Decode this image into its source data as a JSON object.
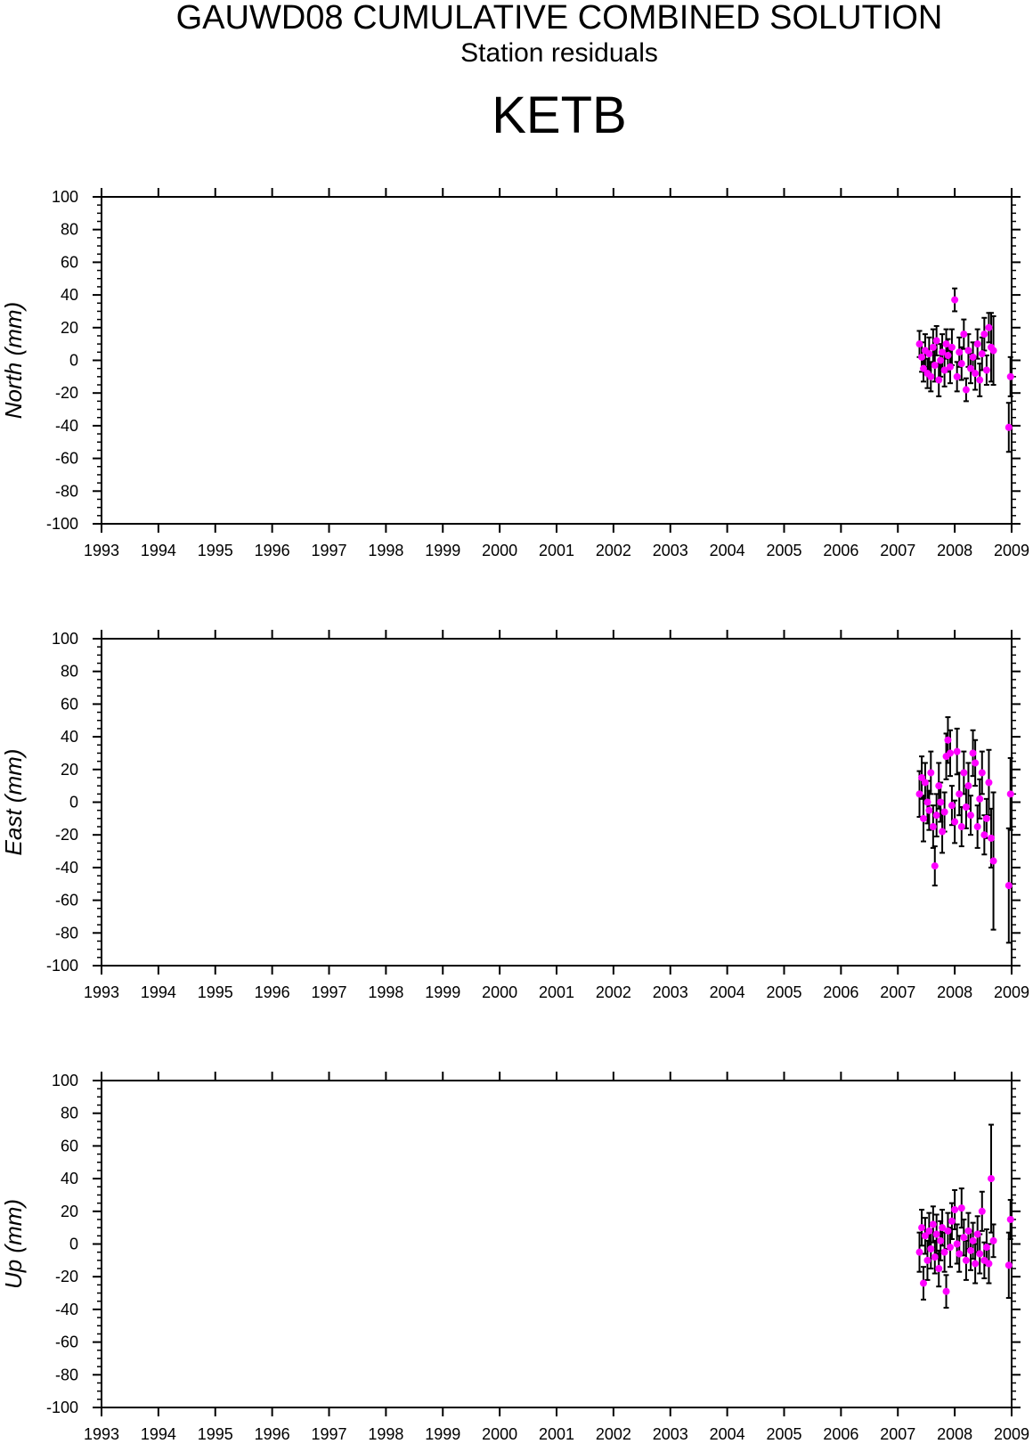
{
  "header": {
    "title": "GAUWD08 CUMULATIVE COMBINED SOLUTION",
    "subtitle": "Station residuals",
    "station": "KETB"
  },
  "colors": {
    "point": "#ff00ff",
    "errorbar": "#000000",
    "axis": "#000000"
  },
  "chart_data": [
    {
      "type": "scatter",
      "title": "",
      "xlabel": "",
      "ylabel": "North (mm)",
      "xlim": [
        1993,
        2009
      ],
      "ylim": [
        -100,
        100
      ],
      "xticks": [
        "1993",
        "1994",
        "1995",
        "1996",
        "1997",
        "1998",
        "1999",
        "2000",
        "2001",
        "2002",
        "2003",
        "2004",
        "2005",
        "2006",
        "2007",
        "2008",
        "2009"
      ],
      "yticks": [
        "100",
        "80",
        "60",
        "40",
        "20",
        "0",
        "-20",
        "-40",
        "-60",
        "-80",
        "-100"
      ],
      "grid": false,
      "series": [
        {
          "x": [
            2007.38,
            2007.42,
            2007.45,
            2007.48,
            2007.52,
            2007.55,
            2007.58,
            2007.62,
            2007.65,
            2007.68,
            2007.72,
            2007.75,
            2007.78,
            2007.82,
            2007.85,
            2007.88,
            2007.92,
            2007.95,
            2008.0,
            2008.04,
            2008.08,
            2008.12,
            2008.16,
            2008.2,
            2008.24,
            2008.28,
            2008.32,
            2008.36,
            2008.4,
            2008.44,
            2008.48,
            2008.52,
            2008.56,
            2008.6,
            2008.64,
            2008.68,
            2008.95,
            2008.98
          ],
          "y": [
            10,
            2,
            -5,
            6,
            -8,
            4,
            -10,
            8,
            -3,
            12,
            -12,
            0,
            5,
            -6,
            10,
            3,
            -4,
            8,
            37,
            -10,
            5,
            -2,
            16,
            -18,
            6,
            -5,
            2,
            -8,
            10,
            -12,
            4,
            16,
            -6,
            20,
            8,
            6,
            -41,
            -10
          ],
          "err": [
            8,
            9,
            8,
            10,
            9,
            10,
            9,
            11,
            10,
            9,
            10,
            10,
            11,
            10,
            9,
            10,
            10,
            11,
            7,
            9,
            9,
            10,
            9,
            7,
            10,
            9,
            9,
            10,
            9,
            10,
            10,
            10,
            9,
            9,
            21,
            21,
            15,
            12
          ]
        }
      ]
    },
    {
      "type": "scatter",
      "title": "",
      "xlabel": "",
      "ylabel": "East (mm)",
      "xlim": [
        1993,
        2009
      ],
      "ylim": [
        -100,
        100
      ],
      "xticks": [
        "1993",
        "1994",
        "1995",
        "1996",
        "1997",
        "1998",
        "1999",
        "2000",
        "2001",
        "2002",
        "2003",
        "2004",
        "2005",
        "2006",
        "2007",
        "2008",
        "2009"
      ],
      "yticks": [
        "100",
        "80",
        "60",
        "40",
        "20",
        "0",
        "-20",
        "-40",
        "-60",
        "-80",
        "-100"
      ],
      "grid": false,
      "series": [
        {
          "x": [
            2007.38,
            2007.42,
            2007.45,
            2007.48,
            2007.52,
            2007.55,
            2007.58,
            2007.62,
            2007.65,
            2007.68,
            2007.72,
            2007.75,
            2007.78,
            2007.82,
            2007.85,
            2007.88,
            2007.92,
            2007.95,
            2008.0,
            2008.04,
            2008.08,
            2008.12,
            2008.16,
            2008.2,
            2008.24,
            2008.28,
            2008.32,
            2008.36,
            2008.4,
            2008.44,
            2008.48,
            2008.52,
            2008.56,
            2008.6,
            2008.64,
            2008.68,
            2008.95,
            2008.98
          ],
          "y": [
            5,
            15,
            -10,
            12,
            0,
            -5,
            18,
            -15,
            -39,
            -8,
            10,
            0,
            -18,
            -6,
            28,
            38,
            30,
            -2,
            -12,
            31,
            5,
            -15,
            18,
            -3,
            10,
            -8,
            30,
            24,
            -15,
            2,
            18,
            -20,
            -10,
            12,
            -22,
            -36,
            -51,
            5
          ],
          "err": [
            14,
            13,
            14,
            12,
            13,
            12,
            13,
            13,
            12,
            13,
            14,
            12,
            13,
            12,
            14,
            14,
            14,
            12,
            13,
            14,
            13,
            12,
            13,
            13,
            14,
            12,
            14,
            14,
            13,
            12,
            13,
            12,
            12,
            20,
            18,
            42,
            35,
            22
          ]
        }
      ]
    },
    {
      "type": "scatter",
      "title": "",
      "xlabel": "",
      "ylabel": "Up (mm)",
      "xlim": [
        1993,
        2009
      ],
      "ylim": [
        -100,
        100
      ],
      "xticks": [
        "1993",
        "1994",
        "1995",
        "1996",
        "1997",
        "1998",
        "1999",
        "2000",
        "2001",
        "2002",
        "2003",
        "2004",
        "2005",
        "2006",
        "2007",
        "2008",
        "2009"
      ],
      "yticks": [
        "100",
        "80",
        "60",
        "40",
        "20",
        "0",
        "-20",
        "-40",
        "-60",
        "-80",
        "-100"
      ],
      "grid": false,
      "series": [
        {
          "x": [
            2007.38,
            2007.42,
            2007.45,
            2007.48,
            2007.52,
            2007.55,
            2007.58,
            2007.62,
            2007.65,
            2007.68,
            2007.72,
            2007.75,
            2007.78,
            2007.82,
            2007.85,
            2007.88,
            2007.92,
            2007.95,
            2008.0,
            2008.04,
            2008.08,
            2008.12,
            2008.16,
            2008.2,
            2008.24,
            2008.28,
            2008.32,
            2008.36,
            2008.4,
            2008.44,
            2008.48,
            2008.52,
            2008.56,
            2008.6,
            2008.64,
            2008.68,
            2008.95,
            2008.98
          ],
          "y": [
            -5,
            10,
            -24,
            5,
            -10,
            8,
            -3,
            12,
            -8,
            6,
            -15,
            2,
            10,
            -5,
            -29,
            8,
            -2,
            14,
            21,
            0,
            -6,
            22,
            4,
            -10,
            8,
            -4,
            2,
            -12,
            6,
            -6,
            20,
            -10,
            -2,
            -12,
            40,
            2,
            -13,
            15
          ],
          "err": [
            12,
            11,
            10,
            11,
            12,
            11,
            12,
            11,
            10,
            12,
            11,
            12,
            11,
            12,
            10,
            11,
            12,
            11,
            12,
            12,
            11,
            12,
            11,
            12,
            11,
            12,
            11,
            12,
            11,
            12,
            12,
            11,
            11,
            12,
            33,
            10,
            20,
            12
          ]
        }
      ]
    }
  ]
}
